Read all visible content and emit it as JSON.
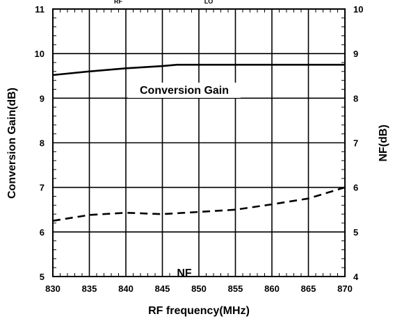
{
  "chart_data": {
    "type": "line",
    "title": "",
    "top_clipped_labels": [
      "RF",
      "LO"
    ],
    "xlabel": "RF frequency(MHz)",
    "ylabel_left": "Conversion Gain(dB)",
    "ylabel_right": "NF(dB)",
    "xlim": [
      830,
      870
    ],
    "ylim_left": [
      5,
      11
    ],
    "ylim_right": [
      4,
      10
    ],
    "x_ticks": [
      "830",
      "835",
      "840",
      "845",
      "850",
      "855",
      "860",
      "865",
      "870"
    ],
    "y_left_ticks": [
      "5",
      "6",
      "7",
      "8",
      "9",
      "10",
      "11"
    ],
    "y_right_ticks": [
      "4",
      "5",
      "6",
      "7",
      "8",
      "9",
      "10"
    ],
    "grid": true,
    "series": [
      {
        "name": "Conversion Gain",
        "axis": "left",
        "style": "solid",
        "color": "#000000",
        "x": [
          830,
          835,
          840,
          845,
          847,
          850,
          855,
          860,
          865,
          870
        ],
        "y": [
          9.52,
          9.6,
          9.67,
          9.72,
          9.75,
          9.75,
          9.75,
          9.75,
          9.75,
          9.75
        ]
      },
      {
        "name": "NF",
        "axis": "right",
        "style": "dashed",
        "color": "#000000",
        "x": [
          830,
          835,
          840,
          845,
          850,
          855,
          860,
          865,
          870
        ],
        "y": [
          5.25,
          5.38,
          5.43,
          5.4,
          5.45,
          5.5,
          5.62,
          5.75,
          6.0
        ]
      }
    ],
    "annotations": [
      {
        "text": "Conversion Gain",
        "x": 848,
        "y": 9.1,
        "axis": "left"
      },
      {
        "text": "NF",
        "x": 848,
        "y": 5.0,
        "axis": "left"
      }
    ]
  }
}
